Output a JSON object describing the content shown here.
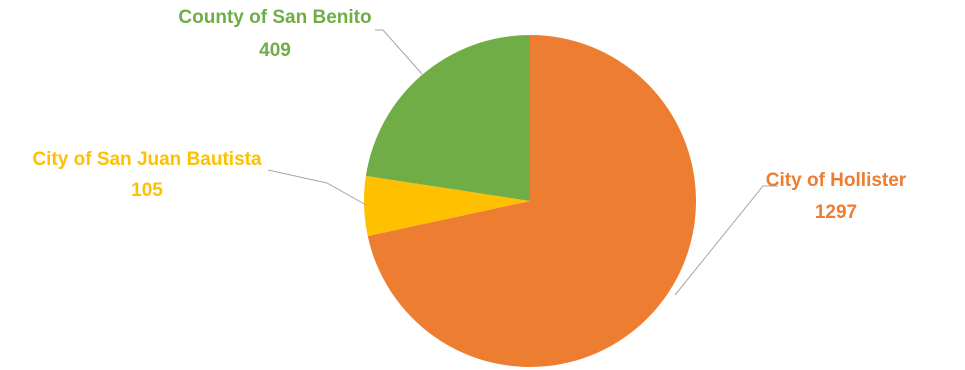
{
  "chart_data": {
    "type": "pie",
    "title": "",
    "slices": [
      {
        "label": "City of Hollister",
        "value": 1297,
        "color": "#ED7D31"
      },
      {
        "label": "City of San Juan Bautista",
        "value": 105,
        "color": "#FFC000"
      },
      {
        "label": "County of San Benito",
        "value": 409,
        "color": "#70AD47"
      }
    ],
    "start_angle_deg": 0,
    "direction": "clockwise",
    "legend": "none",
    "data_labels": "outside-with-leader-lines"
  }
}
